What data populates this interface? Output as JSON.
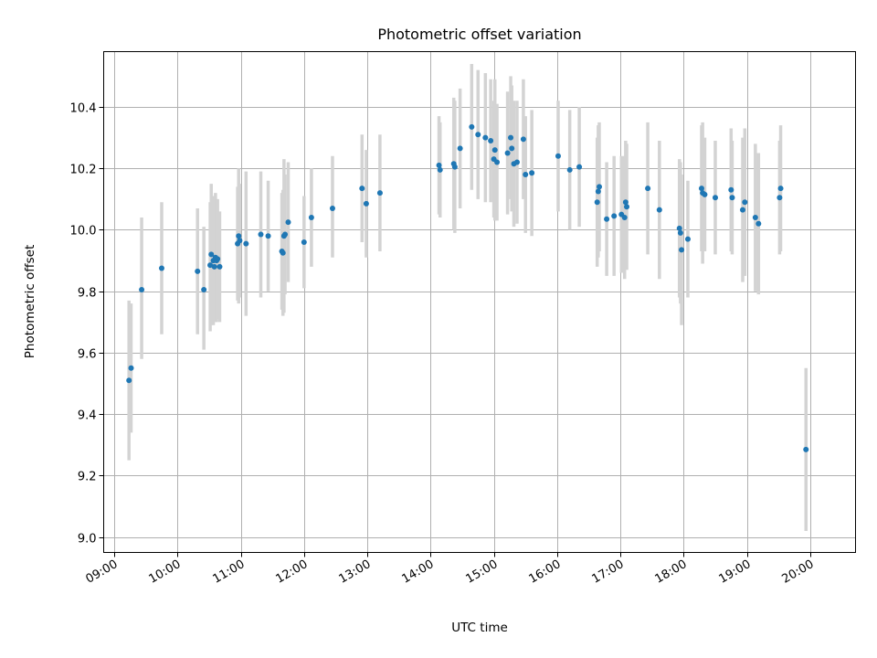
{
  "chart_data": {
    "type": "scatter",
    "title": "Photometric offset variation",
    "xlabel": "UTC time",
    "ylabel": "Photometric offset",
    "xlim": [
      "08:50",
      "20:43"
    ],
    "ylim": [
      8.95,
      10.58
    ],
    "grid": true,
    "xticks": [
      "09:00",
      "10:00",
      "11:00",
      "12:00",
      "13:00",
      "14:00",
      "15:00",
      "16:00",
      "17:00",
      "18:00",
      "19:00",
      "20:00"
    ],
    "yticks": [
      9.0,
      9.2,
      9.4,
      9.6,
      9.8,
      10.0,
      10.2,
      10.4
    ],
    "colors": {
      "point": "#1f77b4",
      "errorbar": "#d3d3d3"
    },
    "series": [
      {
        "x": [
          "09:14",
          "09:16",
          "09:26",
          "09:45",
          "10:19",
          "10:25",
          "10:31",
          "10:32",
          "10:34",
          "10:35",
          "10:36",
          "10:37",
          "10:38",
          "10:40",
          "10:57",
          "10:58",
          "10:59",
          "11:05",
          "11:19",
          "11:26",
          "11:39",
          "11:40",
          "11:41",
          "11:42",
          "11:45",
          "12:00",
          "12:07",
          "12:27",
          "12:55",
          "12:59",
          "13:12",
          "14:08",
          "14:09",
          "14:22",
          "14:23",
          "14:28",
          "14:39",
          "14:45",
          "14:52",
          "14:57",
          "15:00",
          "15:01",
          "15:03",
          "15:13",
          "15:16",
          "15:17",
          "15:19",
          "15:22",
          "15:28",
          "15:30",
          "15:36",
          "16:01",
          "16:12",
          "16:21",
          "16:38",
          "16:39",
          "16:40",
          "16:47",
          "16:54",
          "17:01",
          "17:04",
          "17:05",
          "17:06",
          "17:26",
          "17:37",
          "17:56",
          "17:57",
          "17:58",
          "18:04",
          "18:17",
          "18:18",
          "18:20",
          "18:30",
          "18:45",
          "18:46",
          "18:56",
          "18:58",
          "19:08",
          "19:11",
          "19:31",
          "19:32",
          "19:56"
        ],
        "y": [
          9.51,
          9.55,
          9.805,
          9.875,
          9.865,
          9.805,
          9.885,
          9.92,
          9.9,
          9.88,
          9.91,
          9.9,
          9.905,
          9.88,
          9.955,
          9.98,
          9.965,
          9.955,
          9.985,
          9.98,
          9.93,
          9.925,
          9.98,
          9.985,
          10.025,
          9.96,
          10.04,
          10.07,
          10.135,
          10.085,
          10.12,
          10.21,
          10.195,
          10.215,
          10.205,
          10.265,
          10.335,
          10.31,
          10.3,
          10.29,
          10.23,
          10.26,
          10.22,
          10.25,
          10.3,
          10.265,
          10.215,
          10.22,
          10.295,
          10.18,
          10.185,
          10.24,
          10.195,
          10.205,
          10.09,
          10.125,
          10.14,
          10.035,
          10.045,
          10.05,
          10.04,
          10.09,
          10.075,
          10.135,
          10.065,
          10.005,
          9.99,
          9.935,
          9.97,
          10.135,
          10.12,
          10.115,
          10.105,
          10.13,
          10.105,
          10.065,
          10.09,
          10.04,
          10.02,
          10.105,
          10.135,
          9.285
        ],
        "err_low": [
          9.25,
          9.34,
          9.58,
          9.66,
          9.66,
          9.61,
          9.67,
          9.69,
          9.69,
          9.7,
          9.7,
          9.7,
          9.71,
          9.7,
          9.77,
          9.76,
          9.78,
          9.72,
          9.78,
          9.8,
          9.74,
          9.72,
          9.73,
          9.79,
          9.83,
          9.81,
          9.88,
          9.91,
          9.96,
          9.91,
          9.93,
          10.05,
          10.04,
          10.0,
          9.99,
          10.07,
          10.13,
          10.1,
          10.09,
          10.09,
          10.04,
          10.03,
          10.03,
          10.05,
          10.1,
          10.06,
          10.01,
          10.02,
          10.1,
          9.99,
          9.98,
          10.06,
          10.0,
          10.01,
          9.88,
          9.91,
          9.93,
          9.85,
          9.85,
          9.86,
          9.84,
          9.89,
          9.87,
          9.92,
          9.84,
          9.78,
          9.76,
          9.69,
          9.78,
          9.93,
          9.89,
          9.93,
          9.92,
          9.93,
          9.92,
          9.83,
          9.85,
          9.8,
          9.79,
          9.92,
          9.93,
          9.02
        ],
        "err_high": [
          9.77,
          9.76,
          10.04,
          10.09,
          10.07,
          10.01,
          10.09,
          10.15,
          10.11,
          10.06,
          10.12,
          10.1,
          10.1,
          10.06,
          10.14,
          10.2,
          10.15,
          10.19,
          10.19,
          10.16,
          10.12,
          10.13,
          10.23,
          10.18,
          10.22,
          10.11,
          10.2,
          10.24,
          10.31,
          10.26,
          10.31,
          10.37,
          10.35,
          10.43,
          10.42,
          10.46,
          10.54,
          10.52,
          10.51,
          10.49,
          10.42,
          10.49,
          10.41,
          10.45,
          10.5,
          10.47,
          10.42,
          10.42,
          10.49,
          10.37,
          10.39,
          10.42,
          10.39,
          10.4,
          10.3,
          10.34,
          10.35,
          10.22,
          10.24,
          10.24,
          10.24,
          10.29,
          10.28,
          10.35,
          10.29,
          10.23,
          10.22,
          10.18,
          10.16,
          10.34,
          10.35,
          10.3,
          10.29,
          10.33,
          10.29,
          10.3,
          10.33,
          10.28,
          10.25,
          10.29,
          10.34,
          9.55
        ]
      }
    ]
  }
}
